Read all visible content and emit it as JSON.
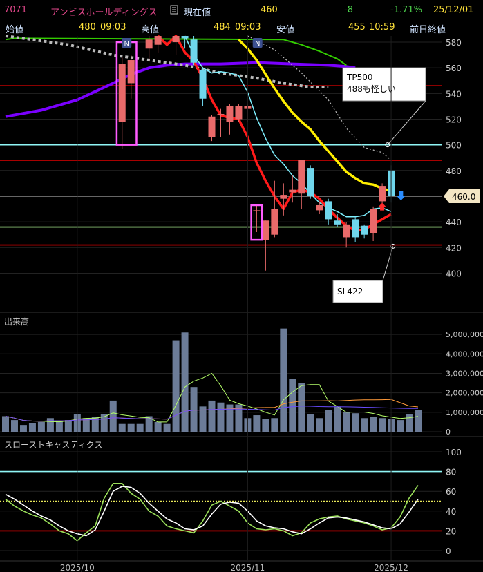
{
  "header": {
    "code": "7071",
    "name": "アンビスホールディングス",
    "current_label": "現在値",
    "current_value": "460",
    "change": "-8",
    "change_pct": "-1.71%",
    "date": "25/12/01",
    "open_label": "始値",
    "open_value": "480",
    "open_time": "09:03",
    "high_label": "高値",
    "high_value": "484",
    "high_time": "09:03",
    "low_label": "安値",
    "low_value": "455",
    "low_time": "10:59",
    "prev_close_label": "前日終値"
  },
  "colors": {
    "up_candle": "#e96a6a",
    "down_candle": "#6fd6ec",
    "ma_short": "#ff1a1a",
    "ma_mid": "#ffee00",
    "ma_long": "#7a00ff",
    "ma_cyan": "#7ef0ff",
    "ma_green": "#33cc00",
    "ma_dotted": "#bbbbbb",
    "line_red": "#e00000",
    "line_cyan": "#8ff5f5",
    "line_lightgreen": "#b6ff9a"
  },
  "annotations": {
    "tp_text_1": "TP500",
    "tp_text_2": "488も怪しい",
    "sl_text": "SL422",
    "price_tag": "460.0",
    "n_marker": "N"
  },
  "chart_data": [
    {
      "type": "candlestick",
      "title": "",
      "ylim": [
        395,
        585
      ],
      "yticks": [
        "580",
        "560",
        "540",
        "520",
        "500",
        "480",
        "460",
        "440",
        "420",
        "400"
      ],
      "horizontal_lines": [
        {
          "value": 546,
          "color": "red"
        },
        {
          "value": 500,
          "color": "cyan"
        },
        {
          "value": 488,
          "color": "red"
        },
        {
          "value": 460,
          "color": "white"
        },
        {
          "value": 436,
          "color": "lightgreen"
        },
        {
          "value": 422,
          "color": "red"
        }
      ],
      "candles": [
        {
          "x": 13,
          "o": 518,
          "h": 568,
          "l": 497,
          "c": 563
        },
        {
          "x": 14,
          "o": 548,
          "h": 570,
          "l": 536,
          "c": 566
        },
        {
          "x": 16,
          "o": 575,
          "h": 590,
          "l": 565,
          "c": 582
        },
        {
          "x": 17,
          "o": 578,
          "h": 592,
          "l": 572,
          "c": 588
        },
        {
          "x": 19,
          "o": 580,
          "h": 590,
          "l": 570,
          "c": 585
        },
        {
          "x": 20,
          "o": 590,
          "h": 595,
          "l": 575,
          "c": 583
        },
        {
          "x": 21,
          "o": 582,
          "h": 590,
          "l": 562,
          "c": 564
        },
        {
          "x": 22,
          "o": 558,
          "h": 560,
          "l": 530,
          "c": 536
        },
        {
          "x": 23,
          "o": 506,
          "h": 523,
          "l": 503,
          "c": 522
        },
        {
          "x": 24,
          "o": 524,
          "h": 528,
          "l": 506,
          "c": 524
        },
        {
          "x": 25,
          "o": 518,
          "h": 532,
          "l": 508,
          "c": 530
        },
        {
          "x": 26,
          "o": 520,
          "h": 532,
          "l": 518,
          "c": 530
        },
        {
          "x": 27,
          "o": 528,
          "h": 532,
          "l": 518,
          "c": 530
        },
        {
          "x": 28,
          "o": 449,
          "h": 454,
          "l": 432,
          "c": 449
        },
        {
          "x": 29,
          "o": 426,
          "h": 441,
          "l": 402,
          "c": 441
        },
        {
          "x": 30,
          "o": 430,
          "h": 472,
          "l": 428,
          "c": 450
        },
        {
          "x": 31,
          "o": 458,
          "h": 470,
          "l": 445,
          "c": 461
        },
        {
          "x": 32,
          "o": 463,
          "h": 476,
          "l": 455,
          "c": 465
        },
        {
          "x": 33,
          "o": 462,
          "h": 488,
          "l": 450,
          "c": 488
        },
        {
          "x": 34,
          "o": 482,
          "h": 484,
          "l": 458,
          "c": 460
        },
        {
          "x": 35,
          "o": 449,
          "h": 456,
          "l": 446,
          "c": 453
        },
        {
          "x": 36,
          "o": 456,
          "h": 458,
          "l": 438,
          "c": 442
        },
        {
          "x": 37,
          "o": 441,
          "h": 446,
          "l": 436,
          "c": 438
        },
        {
          "x": 38,
          "o": 428,
          "h": 440,
          "l": 420,
          "c": 438
        },
        {
          "x": 39,
          "o": 442,
          "h": 444,
          "l": 424,
          "c": 428
        },
        {
          "x": 40,
          "o": 437,
          "h": 438,
          "l": 427,
          "c": 430
        },
        {
          "x": 41,
          "o": 431,
          "h": 452,
          "l": 425,
          "c": 450
        },
        {
          "x": 42,
          "o": 456,
          "h": 470,
          "l": 454,
          "c": 468
        },
        {
          "x": 43,
          "o": 480,
          "h": 484,
          "l": 455,
          "c": 460
        }
      ],
      "moving_averages": [
        {
          "name": "red",
          "points": [
            [
              17,
              590
            ],
            [
              18,
              578
            ],
            [
              19,
              588
            ],
            [
              20,
              572
            ],
            [
              21,
              565
            ],
            [
              22,
              552
            ],
            [
              23,
              535
            ],
            [
              24,
              523
            ],
            [
              25,
              521
            ],
            [
              26,
              520
            ],
            [
              27,
              506
            ],
            [
              28,
              486
            ],
            [
              29,
              472
            ],
            [
              30,
              460
            ],
            [
              31,
              450
            ],
            [
              32,
              463
            ],
            [
              33,
              465
            ],
            [
              34,
              463
            ],
            [
              35,
              458
            ],
            [
              36,
              450
            ],
            [
              37,
              443
            ],
            [
              38,
              437
            ],
            [
              39,
              433
            ],
            [
              40,
              434
            ],
            [
              41,
              438
            ],
            [
              42,
              442
            ],
            [
              43,
              446
            ]
          ]
        },
        {
          "name": "cyan",
          "points": [
            [
              20,
              590
            ],
            [
              21,
              570
            ],
            [
              22,
              560
            ],
            [
              23,
              556
            ],
            [
              24,
              557
            ],
            [
              25,
              556
            ],
            [
              26,
              554
            ],
            [
              27,
              541
            ],
            [
              28,
              521
            ],
            [
              29,
              505
            ],
            [
              30,
              492
            ],
            [
              31,
              485
            ],
            [
              32,
              476
            ],
            [
              33,
              470
            ],
            [
              34,
              462
            ],
            [
              35,
              455
            ],
            [
              36,
              451
            ],
            [
              37,
              448
            ],
            [
              38,
              444
            ],
            [
              39,
              444
            ],
            [
              40,
              445
            ],
            [
              41,
              450
            ],
            [
              42,
              451
            ],
            [
              43,
              448
            ]
          ]
        },
        {
          "name": "yellow",
          "points": [
            [
              26,
              582
            ],
            [
              27,
              575
            ],
            [
              28,
              566
            ],
            [
              29,
              555
            ],
            [
              30,
              544
            ],
            [
              31,
              534
            ],
            [
              32,
              525
            ],
            [
              33,
              518
            ],
            [
              34,
              512
            ],
            [
              35,
              503
            ],
            [
              36,
              495
            ],
            [
              37,
              487
            ],
            [
              38,
              479
            ],
            [
              39,
              474
            ],
            [
              40,
              470
            ],
            [
              41,
              469
            ],
            [
              42,
              466
            ],
            [
              43,
              464
            ]
          ]
        },
        {
          "name": "purple",
          "points": [
            [
              0,
              522
            ],
            [
              4,
              527
            ],
            [
              8,
              535
            ],
            [
              12,
              548
            ],
            [
              14,
              555
            ],
            [
              16,
              560
            ],
            [
              18,
              562
            ],
            [
              20,
              563
            ],
            [
              24,
              563
            ],
            [
              28,
              564
            ],
            [
              32,
              563
            ],
            [
              36,
              562
            ],
            [
              38,
              561
            ],
            [
              39,
              560
            ]
          ]
        },
        {
          "name": "green",
          "points": [
            [
              0,
              582
            ],
            [
              1,
              583
            ],
            [
              31,
              582
            ],
            [
              33,
              578
            ],
            [
              35,
              573
            ],
            [
              37,
              567
            ],
            [
              38,
              562
            ]
          ]
        },
        {
          "name": "dotted",
          "points": [
            [
              0,
              587
            ],
            [
              3,
              582
            ],
            [
              7,
              578
            ],
            [
              12,
              570
            ],
            [
              16,
              566
            ],
            [
              20,
              562
            ],
            [
              24,
              556
            ],
            [
              28,
              552
            ],
            [
              31,
              548
            ],
            [
              34,
              545
            ],
            [
              36,
              545
            ]
          ]
        },
        {
          "name": "dotted-thin",
          "points": [
            [
              27,
              590
            ],
            [
              30,
              574
            ],
            [
              33,
              556
            ],
            [
              36,
              535
            ],
            [
              38,
              513
            ],
            [
              40,
              498
            ],
            [
              42,
              494
            ],
            [
              43,
              488
            ]
          ]
        }
      ]
    },
    {
      "type": "bar",
      "title": "出来高",
      "ylim": [
        0,
        5500000
      ],
      "yticks": [
        "5,000,000",
        "4,000,000",
        "3,000,000",
        "2,000,000",
        "1,000,000",
        "0"
      ],
      "values": [
        800000,
        600000,
        350000,
        450000,
        500000,
        700000,
        550000,
        600000,
        900000,
        700000,
        750000,
        900000,
        1600000,
        400000,
        400000,
        400000,
        800000,
        500000,
        400000,
        4700000,
        5100000,
        2300000,
        1300000,
        1600000,
        1500000,
        1400000,
        1400000,
        700000,
        850000,
        650000,
        700000,
        5300000,
        2700000,
        2500000,
        900000,
        700000,
        1100000,
        1300000,
        1000000,
        950000,
        700000,
        750000,
        700000,
        650000,
        600000,
        900000,
        1100000
      ]
    },
    {
      "type": "line",
      "title": "スローストキャスティクス",
      "ylim": [
        -5,
        110
      ],
      "yticks": [
        "100",
        "80",
        "60",
        "40",
        "20",
        "0"
      ],
      "horizontal_lines": [
        {
          "value": 80,
          "color": "cyan"
        },
        {
          "value": 50,
          "color": "yellow-dotted"
        },
        {
          "value": 20,
          "color": "red"
        }
      ],
      "series": [
        {
          "name": "",
          "values": [
            52,
            45,
            40,
            36,
            33,
            27,
            20,
            17,
            10,
            18,
            25,
            53,
            68,
            68,
            58,
            52,
            40,
            35,
            25,
            22,
            20,
            18,
            30,
            46,
            50,
            45,
            40,
            28,
            22,
            21,
            22,
            20,
            15,
            18,
            28,
            32,
            34,
            35,
            32,
            30,
            28,
            25,
            21,
            23,
            34,
            53,
            66
          ]
        },
        {
          "name": "",
          "values": [
            57,
            52,
            46,
            40,
            35,
            31,
            25,
            20,
            17,
            15,
            21,
            40,
            60,
            65,
            64,
            58,
            48,
            40,
            32,
            28,
            22,
            21,
            25,
            37,
            47,
            49,
            48,
            40,
            30,
            25,
            23,
            22,
            19,
            17,
            22,
            28,
            33,
            34,
            33,
            31,
            29,
            26,
            23,
            22,
            27,
            39,
            52
          ]
        }
      ]
    }
  ],
  "x_axis": {
    "labels": [
      {
        "text": "2025/10",
        "index": 8
      },
      {
        "text": "2025/11",
        "index": 27
      },
      {
        "text": "2025/12",
        "index": 43
      }
    ]
  }
}
